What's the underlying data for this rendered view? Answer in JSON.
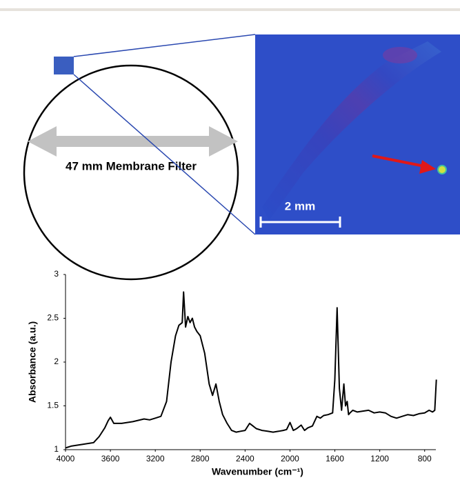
{
  "diagram": {
    "filter_label": "47 mm Membrane Filter",
    "scale_label": "2 mm"
  },
  "chart_data": {
    "type": "line",
    "x_label": "Wavenumber (cm⁻¹)",
    "y_label": "Absorbance (a.u.)",
    "color": "#000000",
    "xlim": [
      4000,
      700
    ],
    "ylim": [
      1,
      3
    ],
    "xticks": [
      4000,
      3600,
      3200,
      2800,
      2400,
      2000,
      1600,
      1200,
      800
    ],
    "yticks": [
      1,
      1.5,
      2,
      2.5,
      3
    ],
    "x": [
      4000,
      3950,
      3850,
      3750,
      3700,
      3650,
      3620,
      3600,
      3570,
      3500,
      3400,
      3300,
      3250,
      3200,
      3150,
      3100,
      3060,
      3020,
      2990,
      2960,
      2948,
      2930,
      2910,
      2890,
      2870,
      2850,
      2830,
      2800,
      2760,
      2720,
      2690,
      2660,
      2630,
      2600,
      2560,
      2520,
      2480,
      2440,
      2400,
      2360,
      2330,
      2300,
      2250,
      2200,
      2150,
      2100,
      2060,
      2030,
      2000,
      1970,
      1940,
      1900,
      1870,
      1840,
      1800,
      1760,
      1730,
      1700,
      1660,
      1620,
      1600,
      1580,
      1560,
      1540,
      1520,
      1505,
      1490,
      1478,
      1465,
      1440,
      1400,
      1350,
      1300,
      1250,
      1200,
      1150,
      1100,
      1050,
      1000,
      950,
      900,
      850,
      800,
      760,
      730,
      710,
      696
    ],
    "values": [
      1.02,
      1.04,
      1.06,
      1.08,
      1.15,
      1.25,
      1.33,
      1.37,
      1.3,
      1.3,
      1.32,
      1.35,
      1.34,
      1.36,
      1.38,
      1.55,
      2.0,
      2.3,
      2.42,
      2.45,
      2.8,
      2.4,
      2.52,
      2.45,
      2.5,
      2.4,
      2.35,
      2.3,
      2.1,
      1.75,
      1.62,
      1.75,
      1.55,
      1.4,
      1.3,
      1.22,
      1.2,
      1.21,
      1.22,
      1.3,
      1.27,
      1.24,
      1.22,
      1.21,
      1.2,
      1.21,
      1.22,
      1.23,
      1.31,
      1.22,
      1.24,
      1.28,
      1.22,
      1.25,
      1.27,
      1.38,
      1.36,
      1.39,
      1.4,
      1.42,
      1.8,
      2.62,
      1.7,
      1.45,
      1.75,
      1.5,
      1.55,
      1.4,
      1.42,
      1.45,
      1.43,
      1.44,
      1.45,
      1.42,
      1.43,
      1.42,
      1.38,
      1.36,
      1.38,
      1.4,
      1.39,
      1.41,
      1.42,
      1.45,
      1.43,
      1.45,
      1.8
    ]
  }
}
